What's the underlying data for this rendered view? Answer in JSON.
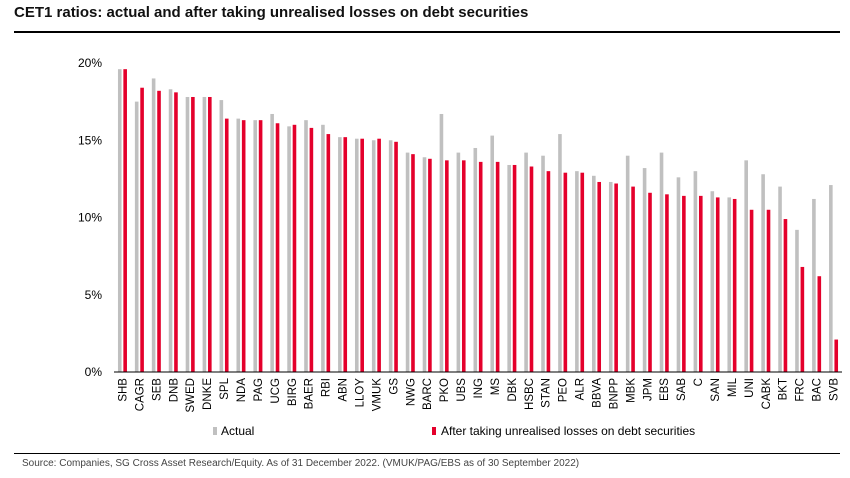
{
  "title": "CET1 ratios: actual and after taking unrealised losses on debt securities",
  "source": "Source: Companies, SG Cross Asset Research/Equity. As of 31 December 2022. (VMUK/PAG/EBS as of 30 September 2022)",
  "colors": {
    "actual": "#c0c0c0",
    "after": "#e4002b",
    "axis": "#000000"
  },
  "chart_data": {
    "type": "bar",
    "title": "CET1 ratios: actual and after taking unrealised losses on debt securities",
    "xlabel": "",
    "ylabel": "",
    "ylim": [
      0,
      20
    ],
    "yticks": [
      0,
      5,
      10,
      15,
      20
    ],
    "ytick_labels": [
      "0%",
      "5%",
      "10%",
      "15%",
      "20%"
    ],
    "legend_position": "bottom",
    "grid": false,
    "categories": [
      "SHB",
      "CAGR",
      "SEB",
      "DNB",
      "SWED",
      "DNKE",
      "SPL",
      "NDA",
      "PAG",
      "UCG",
      "BIRG",
      "BAER",
      "RBI",
      "ABN",
      "LLOY",
      "VMUK",
      "GS",
      "NWG",
      "BARC",
      "PKO",
      "UBS",
      "ING",
      "MS",
      "DBK",
      "HSBC",
      "STAN",
      "PEO",
      "ALR",
      "BBVA",
      "BNPP",
      "MBK",
      "JPM",
      "EBS",
      "SAB",
      "C",
      "SAN",
      "MIL",
      "UNI",
      "CABK",
      "BKT",
      "FRC",
      "BAC",
      "SVB"
    ],
    "series": [
      {
        "name": "Actual",
        "values": [
          19.6,
          17.5,
          19.0,
          18.3,
          17.8,
          17.8,
          17.6,
          16.4,
          16.3,
          16.7,
          15.9,
          16.3,
          16.0,
          15.2,
          15.1,
          15.0,
          15.0,
          14.2,
          13.9,
          16.7,
          14.2,
          14.5,
          15.3,
          13.4,
          14.2,
          14.0,
          15.4,
          13.0,
          12.7,
          12.3,
          14.0,
          13.2,
          14.2,
          12.6,
          13.0,
          11.7,
          11.3,
          13.7,
          12.8,
          12.0,
          9.2,
          11.2,
          12.1
        ]
      },
      {
        "name": "After taking unrealised losses on debt securities",
        "values": [
          19.6,
          18.4,
          18.2,
          18.1,
          17.8,
          17.8,
          16.4,
          16.3,
          16.3,
          16.1,
          16.0,
          15.8,
          15.4,
          15.2,
          15.1,
          15.1,
          14.9,
          14.1,
          13.8,
          13.7,
          13.7,
          13.6,
          13.6,
          13.4,
          13.3,
          13.0,
          12.9,
          12.9,
          12.3,
          12.2,
          12.0,
          11.6,
          11.5,
          11.4,
          11.4,
          11.3,
          11.2,
          10.5,
          10.5,
          9.9,
          6.8,
          6.2,
          2.1
        ]
      }
    ]
  }
}
